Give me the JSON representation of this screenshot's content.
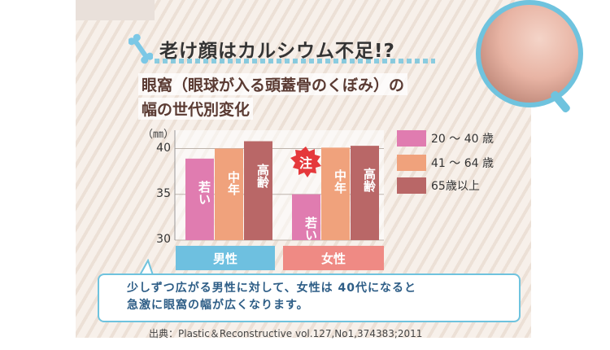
{
  "header": {
    "title": "老け顔はカルシウム不足!?",
    "subtitle_line1": "眼窩（眼球が入る頭蓋骨のくぼみ）の",
    "subtitle_line2": "幅の世代別変化"
  },
  "chart_data": {
    "type": "bar",
    "unit_label": "（㎜）",
    "ylim": [
      30,
      42
    ],
    "yticks": [
      "30",
      "35",
      "40"
    ],
    "ytick_values": [
      30,
      35,
      40
    ],
    "groups": [
      "男性",
      "女性"
    ],
    "series": [
      {
        "name": "20 ～ 40 歳",
        "color": "#e07cb0",
        "values": [
          38.9,
          35.0
        ],
        "bar_labels": [
          "若い",
          "若い"
        ]
      },
      {
        "name": "41 ～ 64 歳",
        "color": "#f0a27c",
        "values": [
          40.0,
          40.1
        ],
        "bar_labels": [
          "中年",
          "中年"
        ]
      },
      {
        "name": "65歳以上",
        "color": "#b96767",
        "values": [
          40.8,
          40.3
        ],
        "bar_labels": [
          "高齢",
          "高齢"
        ]
      }
    ],
    "group_colors": [
      "#6ec0e0",
      "#ef8a84"
    ],
    "annotation": "注"
  },
  "note": {
    "line1": "少しずつ広がる男性に対して、女性は 40代になると",
    "line2": "急激に眼窩の幅が広くなります。"
  },
  "source": "出典：Plastic＆Reconstructive vol.127,No1,374383;2011",
  "icons": [
    "bone-icon",
    "magnifier-photo"
  ]
}
